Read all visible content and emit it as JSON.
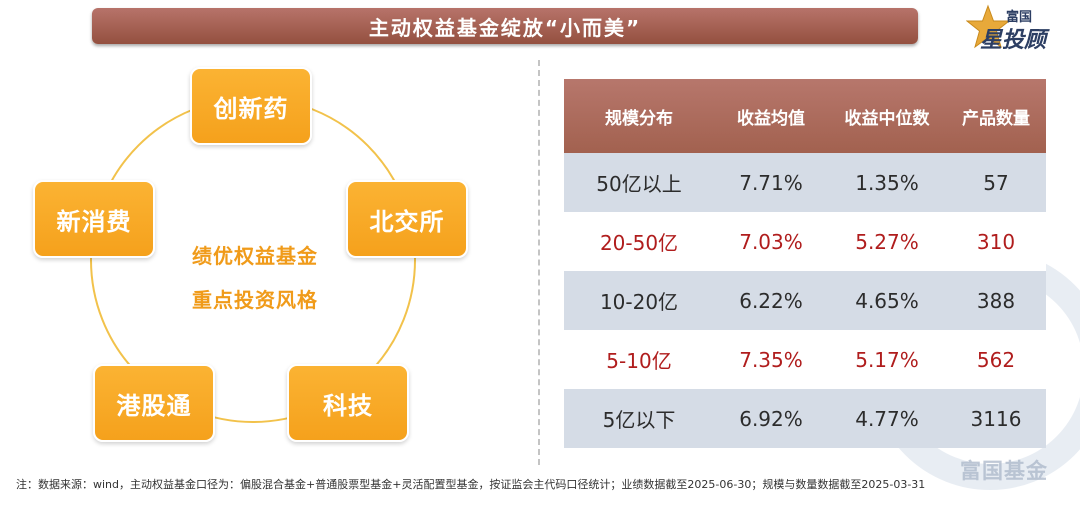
{
  "title": "主动权益基金绽放“小而美”",
  "logo": {
    "brand_small": "富国",
    "brand_big": "星投顾",
    "icon": "star-icon"
  },
  "left_panel": {
    "pills": [
      "创新药",
      "北交所",
      "科技",
      "港股通",
      "新消费"
    ],
    "center_lines": [
      "绩优权益基金",
      "重点投资风格"
    ]
  },
  "table": {
    "headers": [
      "规模分布",
      "收益均值",
      "收益中位数",
      "产品数量"
    ],
    "rows": [
      [
        "50亿以上",
        "7.71%",
        "1.35%",
        "57"
      ],
      [
        "20-50亿",
        "7.03%",
        "5.27%",
        "310"
      ],
      [
        "10-20亿",
        "6.22%",
        "4.65%",
        "388"
      ],
      [
        "5-10亿",
        "7.35%",
        "5.17%",
        "562"
      ],
      [
        "5亿以下",
        "6.92%",
        "4.77%",
        "3116"
      ]
    ]
  },
  "watermark": "富国基金",
  "note": "注：数据来源：wind，主动权益基金口径为：偏股混合基金+普通股票型基金+灵活配置型基金，按证监会主代码口径统计；业绩数据截至2025-06-30；规模与数量数据截至2025-03-31",
  "colors": {
    "title_bar": "#a15f50",
    "pill": "#f8aa26",
    "ring": "#f2c24b",
    "table_header": "#ac6b5c",
    "row_gray": "#d5dce6",
    "highlight_text": "#b01d1d"
  }
}
